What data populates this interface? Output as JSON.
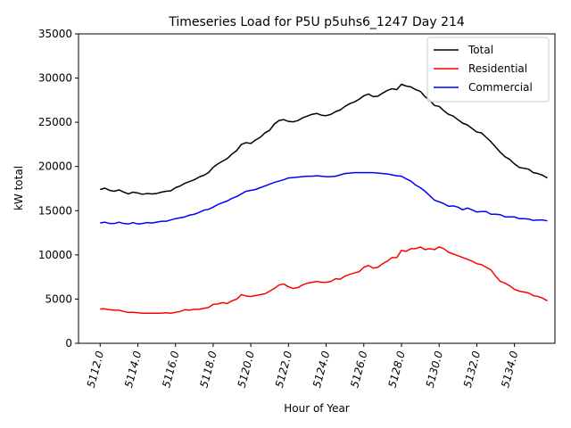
{
  "chart_data": {
    "type": "line",
    "title": "Timeseries Load for P5U p5uhs6_1247  Day 214",
    "xlabel": "Hour of Year",
    "ylabel": "kW total",
    "xlim": [
      5110.85,
      5136.15
    ],
    "ylim": [
      0,
      35000
    ],
    "xticks": [
      5112,
      5114,
      5116,
      5118,
      5120,
      5122,
      5124,
      5126,
      5128,
      5130,
      5132,
      5134
    ],
    "xtick_labels": [
      "5112.0",
      "5114.0",
      "5116.0",
      "5118.0",
      "5120.0",
      "5122.0",
      "5124.0",
      "5126.0",
      "5128.0",
      "5130.0",
      "5132.0",
      "5134.0"
    ],
    "yticks": [
      0,
      5000,
      10000,
      15000,
      20000,
      25000,
      30000,
      35000
    ],
    "ytick_labels": [
      "0",
      "5000",
      "10000",
      "15000",
      "20000",
      "25000",
      "30000",
      "35000"
    ],
    "legend_position": "top-right",
    "x_start": 5112,
    "x_step": 0.25,
    "series": [
      {
        "name": "Total",
        "color": "#000000",
        "values": [
          17400,
          17550,
          17300,
          17200,
          17350,
          17100,
          16900,
          17100,
          17000,
          16850,
          16950,
          16900,
          16950,
          17100,
          17200,
          17250,
          17600,
          17800,
          18100,
          18300,
          18500,
          18800,
          19000,
          19300,
          19900,
          20300,
          20600,
          20900,
          21400,
          21800,
          22500,
          22700,
          22600,
          23000,
          23300,
          23800,
          24100,
          24800,
          25200,
          25300,
          25100,
          25050,
          25200,
          25500,
          25700,
          25900,
          26000,
          25800,
          25750,
          25900,
          26200,
          26400,
          26800,
          27100,
          27300,
          27600,
          28000,
          28200,
          27900,
          27950,
          28300,
          28600,
          28800,
          28700,
          29300,
          29100,
          29000,
          28700,
          28500,
          27900,
          27500,
          26900,
          26800,
          26300,
          25900,
          25700,
          25300,
          24900,
          24700,
          24300,
          23900,
          23800,
          23300,
          22800,
          22200,
          21600,
          21100,
          20800,
          20300,
          19900,
          19800,
          19700,
          19300,
          19200,
          19000,
          18700
        ]
      },
      {
        "name": "Residential",
        "color": "#ff0000",
        "values": [
          3900,
          3900,
          3800,
          3750,
          3750,
          3600,
          3500,
          3500,
          3450,
          3400,
          3400,
          3400,
          3400,
          3400,
          3450,
          3400,
          3500,
          3600,
          3800,
          3750,
          3850,
          3850,
          3950,
          4050,
          4400,
          4450,
          4600,
          4500,
          4800,
          5000,
          5500,
          5350,
          5300,
          5400,
          5500,
          5600,
          5900,
          6200,
          6600,
          6700,
          6400,
          6200,
          6300,
          6600,
          6800,
          6900,
          7000,
          6900,
          6900,
          7000,
          7300,
          7250,
          7600,
          7800,
          7950,
          8100,
          8600,
          8800,
          8500,
          8600,
          9000,
          9300,
          9700,
          9700,
          10500,
          10400,
          10700,
          10700,
          10900,
          10600,
          10700,
          10600,
          10900,
          10700,
          10300,
          10100,
          9900,
          9700,
          9500,
          9300,
          9000,
          8900,
          8600,
          8300,
          7600,
          7000,
          6800,
          6500,
          6100,
          5900,
          5800,
          5700,
          5400,
          5300,
          5100,
          4800
        ]
      },
      {
        "name": "Commercial",
        "color": "#0000ff",
        "values": [
          13600,
          13700,
          13550,
          13550,
          13700,
          13550,
          13500,
          13650,
          13500,
          13550,
          13650,
          13600,
          13700,
          13800,
          13800,
          13950,
          14100,
          14200,
          14300,
          14500,
          14600,
          14800,
          15050,
          15150,
          15400,
          15700,
          15900,
          16100,
          16400,
          16600,
          16900,
          17200,
          17300,
          17400,
          17600,
          17800,
          18000,
          18200,
          18350,
          18500,
          18700,
          18750,
          18800,
          18850,
          18900,
          18900,
          18950,
          18900,
          18850,
          18850,
          18900,
          19050,
          19200,
          19250,
          19300,
          19300,
          19300,
          19300,
          19300,
          19250,
          19200,
          19150,
          19050,
          18950,
          18900,
          18600,
          18350,
          17900,
          17600,
          17200,
          16700,
          16200,
          16000,
          15800,
          15500,
          15550,
          15400,
          15100,
          15300,
          15100,
          14850,
          14900,
          14900,
          14600,
          14600,
          14550,
          14300,
          14300,
          14300,
          14100,
          14100,
          14050,
          13900,
          13950,
          13950,
          13850
        ]
      }
    ]
  }
}
